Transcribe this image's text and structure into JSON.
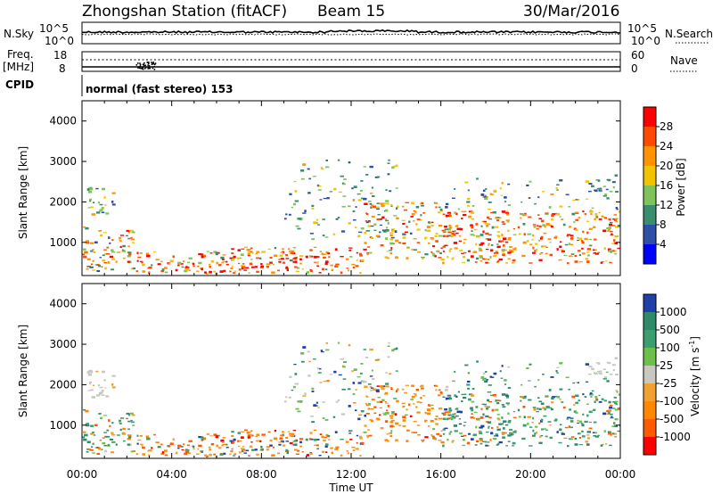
{
  "header": {
    "station": "Zhongshan Station (fitACF)",
    "beam": "Beam 15",
    "date": "30/Mar/2016"
  },
  "top_panels": {
    "nsky_label": "N.Sky",
    "nsky_ticks": [
      "10^5",
      "10^0"
    ],
    "nsearch_label": "N.Search",
    "freq_label_1": "Freq.",
    "freq_label_2": "[MHz]",
    "freq_ticks": [
      "18",
      "8"
    ],
    "nave_label": "Nave",
    "nave_ticks": [
      "60",
      "0"
    ],
    "cpid_label": "CPID",
    "cpid_text": "normal (fast stereo) 153"
  },
  "chart_data": [
    {
      "type": "heatmap",
      "name": "power",
      "ylabel": "Slant Range [km]",
      "xlabel": "",
      "ylim": [
        180,
        4500
      ],
      "xlim": [
        0,
        24
      ],
      "yticks": [
        1000,
        2000,
        3000,
        4000
      ],
      "colorbar": {
        "label": "Power [dB]",
        "ticks": [
          "28",
          "24",
          "20",
          "16",
          "12",
          "8",
          "4"
        ],
        "colors": [
          "#ff0000",
          "#ff4a00",
          "#ff9400",
          "#f2c400",
          "#7ec45a",
          "#3a8e6e",
          "#2e4fa8",
          "#0000ff"
        ]
      }
    },
    {
      "type": "heatmap",
      "name": "velocity",
      "ylabel": "Slant Range [km]",
      "xlabel": "Time UT",
      "ylim": [
        180,
        4500
      ],
      "xlim": [
        0,
        24
      ],
      "yticks": [
        1000,
        2000,
        3000,
        4000
      ],
      "xticks": [
        "00:00",
        "04:00",
        "08:00",
        "12:00",
        "16:00",
        "20:00",
        "00:00"
      ],
      "colorbar": {
        "label": "Velocity [m s",
        "label_sup": "-1",
        "label_end": "]",
        "ticks": [
          "1000",
          "500",
          "100",
          "25",
          "-25",
          "-100",
          "-500",
          "-1000"
        ],
        "colors": [
          "#1e40a8",
          "#2f8a6a",
          "#3a9e6e",
          "#6cc04a",
          "#c8c8c0",
          "#f2a030",
          "#ff8800",
          "#ff5a00",
          "#ff0000"
        ]
      }
    }
  ]
}
